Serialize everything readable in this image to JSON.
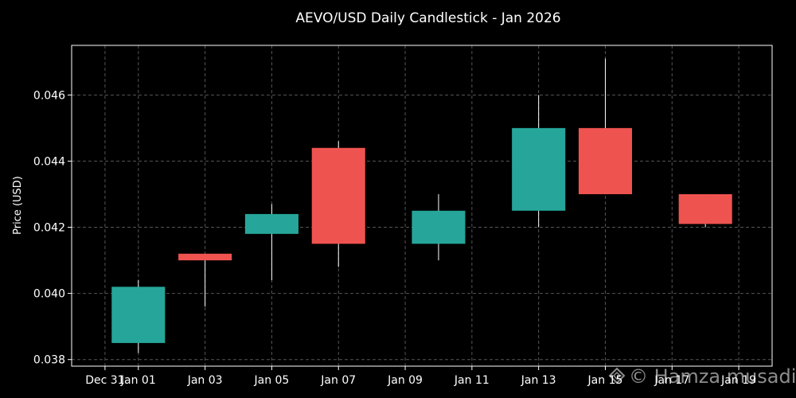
{
  "chart_data": {
    "type": "candlestick",
    "title": "AEVO/USD Daily Candlestick - Jan 2026",
    "xlabel": "",
    "ylabel": "Price (USD)",
    "ylim": [
      0.0378,
      0.0475
    ],
    "y_ticks": [
      0.038,
      0.04,
      0.042,
      0.044,
      0.046
    ],
    "y_tick_labels": [
      "0.038",
      "0.040",
      "0.042",
      "0.044",
      "0.046"
    ],
    "x_ticks": [
      "2025-12-31",
      "2026-01-01",
      "2026-01-03",
      "2026-01-05",
      "2026-01-07",
      "2026-01-09",
      "2026-01-11",
      "2026-01-13",
      "2026-01-15",
      "2026-01-17",
      "2026-01-19"
    ],
    "x_tick_labels": [
      "Dec 31",
      "Jan 01",
      "Jan 03",
      "Jan 05",
      "Jan 07",
      "Jan 09",
      "Jan 11",
      "Jan 13",
      "Jan 15",
      "Jan 17",
      "Jan 19"
    ],
    "xlim": [
      "2025-12-30",
      "2026-01-20"
    ],
    "grid": true,
    "candles": [
      {
        "date": "2026-01-01",
        "open": 0.0385,
        "high": 0.0404,
        "low": 0.0382,
        "close": 0.0402
      },
      {
        "date": "2026-01-03",
        "open": 0.0412,
        "high": 0.0412,
        "low": 0.0396,
        "close": 0.041
      },
      {
        "date": "2026-01-05",
        "open": 0.0418,
        "high": 0.0427,
        "low": 0.0404,
        "close": 0.0424
      },
      {
        "date": "2026-01-07",
        "open": 0.0444,
        "high": 0.0446,
        "low": 0.0408,
        "close": 0.0415
      },
      {
        "date": "2026-01-10",
        "open": 0.0415,
        "high": 0.043,
        "low": 0.041,
        "close": 0.0425
      },
      {
        "date": "2026-01-13",
        "open": 0.0425,
        "high": 0.046,
        "low": 0.042,
        "close": 0.045
      },
      {
        "date": "2026-01-15",
        "open": 0.045,
        "high": 0.0471,
        "low": 0.043,
        "close": 0.043
      },
      {
        "date": "2026-01-18",
        "open": 0.043,
        "high": 0.043,
        "low": 0.042,
        "close": 0.0421
      }
    ],
    "colors": {
      "up": "#26a69a",
      "down": "#ef5350",
      "wick": "#ffffff",
      "grid": "#555555",
      "background": "#000000"
    }
  },
  "watermark": "© Hamza musadi",
  "watermark_icon": "diamond-icon"
}
